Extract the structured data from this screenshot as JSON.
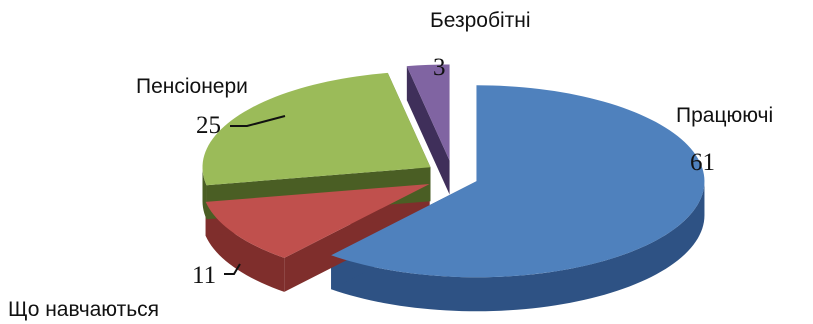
{
  "chart_data": {
    "type": "pie",
    "categories": [
      "Працюючі",
      "Що навчаються",
      "Пенсіонери",
      "Безробітні"
    ],
    "values": [
      61,
      11,
      25,
      3
    ],
    "colors": [
      "#4f81bd",
      "#c0504d",
      "#9bbb59",
      "#8064a2"
    ],
    "side_colors": [
      "#2e5284",
      "#7f2e2c",
      "#4a5e24",
      "#3f2f5a"
    ],
    "three_d": true,
    "exploded": true,
    "legend": "none",
    "title": ""
  }
}
